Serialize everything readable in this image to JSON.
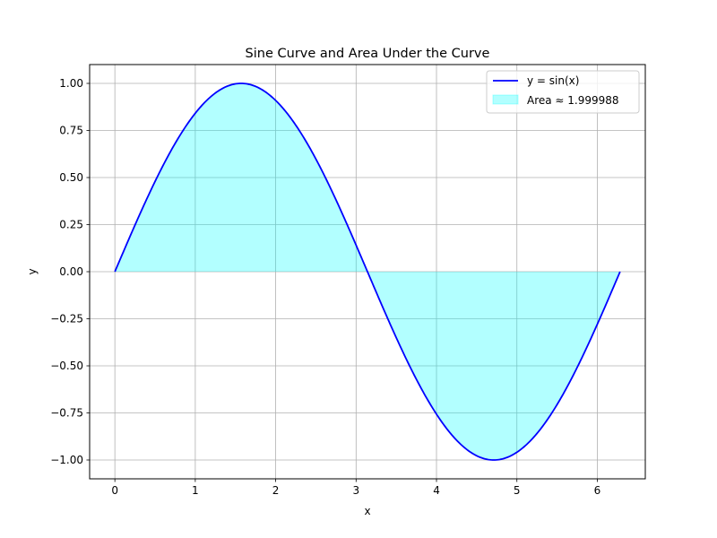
{
  "chart_data": {
    "type": "area",
    "title": "Sine Curve and Area Under the Curve",
    "xlabel": "x",
    "ylabel": "y",
    "xlim": [
      -0.314,
      6.597
    ],
    "ylim": [
      -1.1,
      1.1
    ],
    "x_ticks": [
      0,
      1,
      2,
      3,
      4,
      5,
      6
    ],
    "x_tick_labels": [
      "0",
      "1",
      "2",
      "3",
      "4",
      "5",
      "6"
    ],
    "y_ticks": [
      1.0,
      0.75,
      0.5,
      0.25,
      0.0,
      -0.25,
      -0.5,
      -0.75,
      -1.0
    ],
    "y_tick_labels": [
      "1.00",
      "0.75",
      "0.50",
      "0.25",
      "0.00",
      "−0.25",
      "−0.50",
      "−0.75",
      "−1.00"
    ],
    "grid": true,
    "legend_position": "top-right",
    "series": [
      {
        "name": "y = sin(x)",
        "kind": "line",
        "color": "#0000ff",
        "function": "sin",
        "x_range": [
          0,
          6.283185
        ],
        "samples": [
          [
            0,
            0
          ],
          [
            0.5,
            0.479
          ],
          [
            1,
            0.841
          ],
          [
            1.571,
            1.0
          ],
          [
            2,
            0.909
          ],
          [
            2.5,
            0.598
          ],
          [
            3,
            0.141
          ],
          [
            3.142,
            0.0
          ],
          [
            3.5,
            -0.351
          ],
          [
            4,
            -0.757
          ],
          [
            4.712,
            -1.0
          ],
          [
            5,
            -0.959
          ],
          [
            5.5,
            -0.706
          ],
          [
            6,
            -0.279
          ],
          [
            6.283,
            0.0
          ]
        ]
      },
      {
        "name": "Area ≈ 1.999988",
        "kind": "fill",
        "color": "#00ffff",
        "alpha": 0.3,
        "baseline": 0
      }
    ]
  }
}
